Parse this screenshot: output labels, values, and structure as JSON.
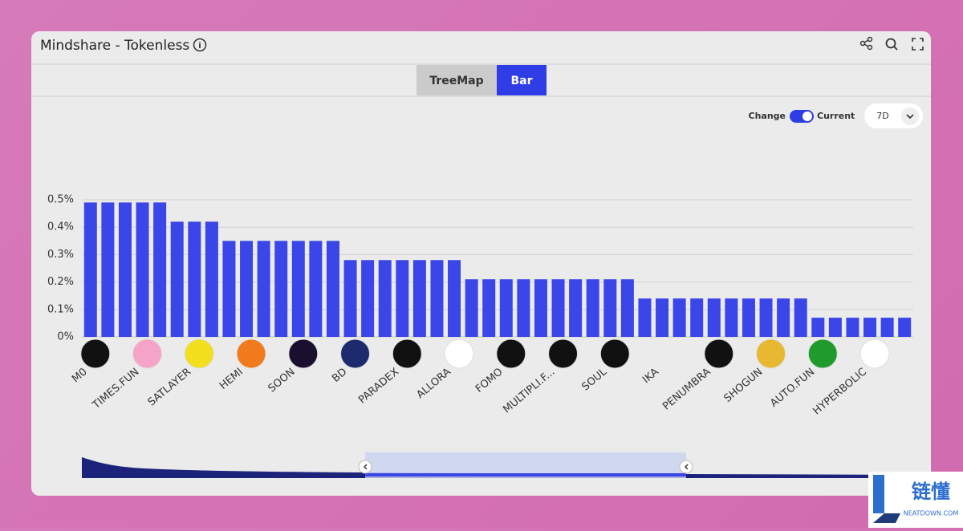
{
  "header": {
    "title": "Mindshare - Tokenless"
  },
  "tabs": [
    "TreeMap",
    "Bar"
  ],
  "controls": {
    "toggle_left": "Change",
    "toggle_right": "Current",
    "period": "7D"
  },
  "watermark": {
    "brand": "链懂",
    "site": "NEATDOWN.COM"
  },
  "chart_data": {
    "type": "bar",
    "color": "#3b46e8",
    "categories": [
      "M0",
      null,
      null,
      "TIMES.FUN",
      null,
      null,
      "SATLAYER",
      null,
      null,
      "HEMI",
      null,
      null,
      "SOON",
      null,
      null,
      "BD",
      null,
      null,
      "PARADEX",
      null,
      null,
      "ALLORA",
      null,
      null,
      "FOMO",
      null,
      null,
      "MULTIPLI.F...",
      null,
      null,
      "SOUL",
      null,
      null,
      "IKA",
      null,
      null,
      "PENUMBRA",
      null,
      null,
      "SHOGUN",
      null,
      null,
      "AUTO.FUN",
      null,
      null,
      "HYPERBOLIC",
      null,
      null
    ],
    "values": [
      0.49,
      0.49,
      0.49,
      0.49,
      0.49,
      0.42,
      0.42,
      0.42,
      0.35,
      0.35,
      0.35,
      0.35,
      0.35,
      0.35,
      0.35,
      0.28,
      0.28,
      0.28,
      0.28,
      0.28,
      0.28,
      0.28,
      0.21,
      0.21,
      0.21,
      0.21,
      0.21,
      0.21,
      0.21,
      0.21,
      0.21,
      0.21,
      0.14,
      0.14,
      0.14,
      0.14,
      0.14,
      0.14,
      0.14,
      0.14,
      0.14,
      0.14,
      0.07,
      0.07,
      0.07,
      0.07,
      0.07,
      0.07
    ],
    "ylim": [
      0,
      0.5
    ],
    "yticks": [
      {
        "value": 0,
        "label": "0%"
      },
      {
        "value": 0.1,
        "label": "0.1%"
      },
      {
        "value": 0.2,
        "label": "0.2%"
      },
      {
        "value": 0.3,
        "label": "0.3%"
      },
      {
        "value": 0.4,
        "label": "0.4%"
      },
      {
        "value": 0.5,
        "label": "0.5%"
      }
    ],
    "grid": true
  }
}
